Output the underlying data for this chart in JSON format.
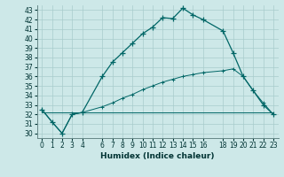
{
  "xlabel": "Humidex (Indice chaleur)",
  "bg_color": "#cde8e8",
  "grid_color": "#a8cccc",
  "line_color": "#006666",
  "xlim": [
    -0.5,
    23.5
  ],
  "ylim": [
    29.5,
    43.5
  ],
  "yticks": [
    30,
    31,
    32,
    33,
    34,
    35,
    36,
    37,
    38,
    39,
    40,
    41,
    42,
    43
  ],
  "xticks": [
    0,
    1,
    2,
    3,
    4,
    6,
    7,
    8,
    9,
    10,
    11,
    12,
    13,
    14,
    15,
    16,
    18,
    19,
    20,
    21,
    22,
    23
  ],
  "line1_x": [
    0,
    1,
    2,
    3,
    4,
    6,
    7,
    8,
    9,
    10,
    11,
    12,
    13,
    14,
    15,
    16,
    18,
    19,
    20,
    21,
    22,
    23
  ],
  "line1_y": [
    32.5,
    31.2,
    30.0,
    32.0,
    32.2,
    36.0,
    37.5,
    38.5,
    39.5,
    40.5,
    41.2,
    42.2,
    42.1,
    43.2,
    42.5,
    42.0,
    40.8,
    38.5,
    36.0,
    34.5,
    33.0,
    32.0
  ],
  "line2_x": [
    0,
    23
  ],
  "line2_y": [
    32.2,
    32.2
  ],
  "line3_x": [
    0,
    1,
    2,
    3,
    4,
    6,
    7,
    8,
    9,
    10,
    11,
    12,
    13,
    14,
    15,
    16,
    18,
    19,
    20,
    21,
    22,
    23
  ],
  "line3_y": [
    32.5,
    31.2,
    30.0,
    32.0,
    32.2,
    32.8,
    33.2,
    33.7,
    34.1,
    34.6,
    35.0,
    35.4,
    35.7,
    36.0,
    36.2,
    36.4,
    36.6,
    36.8,
    36.0,
    34.5,
    33.2,
    32.0
  ]
}
